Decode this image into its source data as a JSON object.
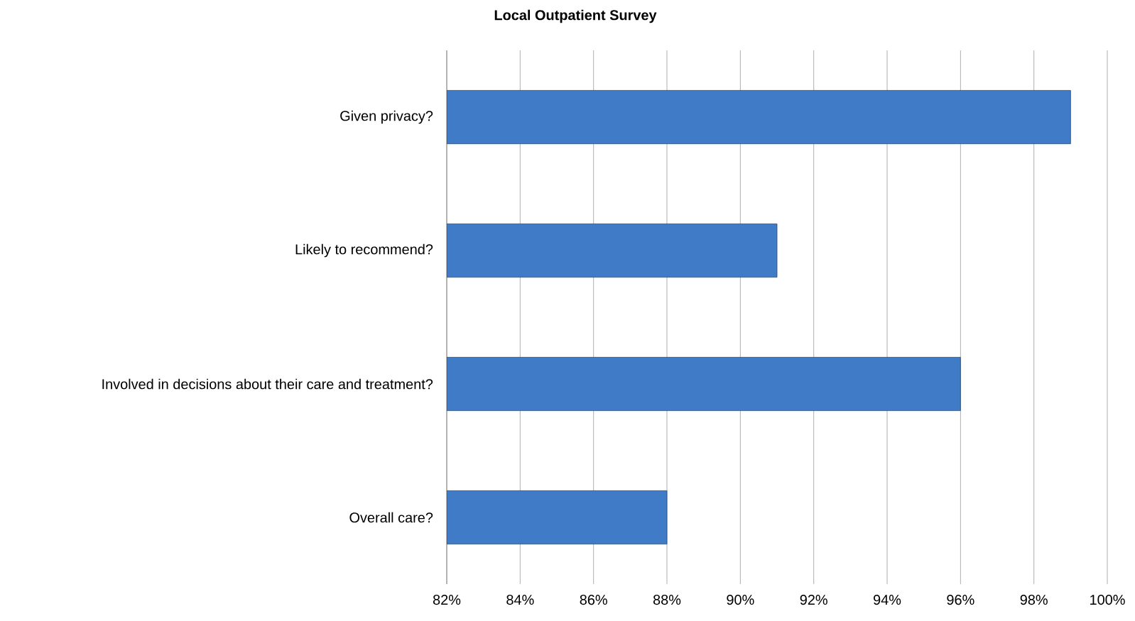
{
  "chart_data": {
    "type": "bar",
    "orientation": "horizontal",
    "title": "Local Outpatient Survey",
    "categories": [
      "Given privacy?",
      "Likely to recommend?",
      "Involved in decisions about their care and treatment?",
      "Overall care?"
    ],
    "values": [
      99,
      91,
      96,
      88
    ],
    "color": "#3f7bc6",
    "xlim": [
      82,
      100
    ],
    "xticks": [
      {
        "value": 82,
        "label": "82%"
      },
      {
        "value": 84,
        "label": "84%"
      },
      {
        "value": 86,
        "label": "86%"
      },
      {
        "value": 88,
        "label": "88%"
      },
      {
        "value": 90,
        "label": "90%"
      },
      {
        "value": 92,
        "label": "92%"
      },
      {
        "value": 94,
        "label": "94%"
      },
      {
        "value": 96,
        "label": "96%"
      },
      {
        "value": 98,
        "label": "98%"
      },
      {
        "value": 100,
        "label": "100%"
      }
    ],
    "grid": "x"
  }
}
